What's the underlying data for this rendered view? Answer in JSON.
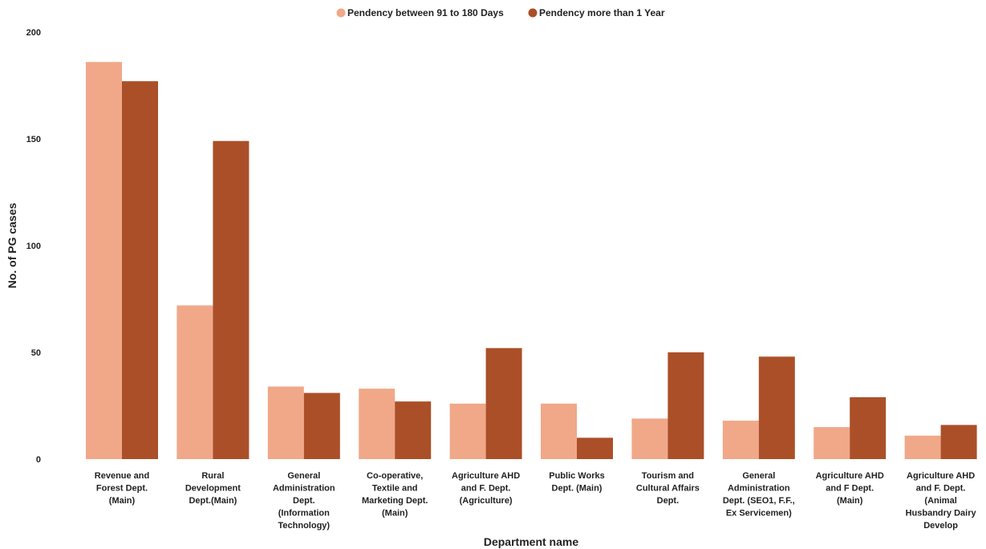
{
  "chart_data": {
    "type": "bar",
    "title": "",
    "xlabel": "Department name",
    "ylabel": "No. of PG cases",
    "ylim": [
      0,
      200
    ],
    "yticks": [
      0,
      50,
      100,
      150,
      200
    ],
    "grid": false,
    "legend_position": "top-center",
    "categories": [
      [
        "Revenue and",
        "Forest Dept.",
        "(Main)"
      ],
      [
        "Rural",
        "Development",
        "Dept.(Main)"
      ],
      [
        "General",
        "Administration",
        "Dept.",
        "(Information",
        "Technology)"
      ],
      [
        "Co-operative,",
        "Textile and",
        "Marketing Dept.",
        "(Main)"
      ],
      [
        "Agriculture AHD",
        "and F. Dept.",
        "(Agriculture)"
      ],
      [
        "Public Works",
        "Dept. (Main)"
      ],
      [
        "Tourism and",
        "Cultural Affairs",
        "Dept."
      ],
      [
        "General",
        "Administration",
        "Dept. (SEO1, F.F.,",
        "Ex Servicemen)"
      ],
      [
        "Agriculture AHD",
        "and F Dept.",
        "(Main)"
      ],
      [
        "Agriculture AHD",
        "and F. Dept.",
        "(Animal",
        "Husbandry Dairy",
        "Develop"
      ]
    ],
    "series": [
      {
        "name": "Pendency between 91 to 180 Days",
        "color": "#f0a889",
        "values": [
          186,
          72,
          34,
          33,
          26,
          26,
          19,
          18,
          15,
          11
        ]
      },
      {
        "name": "Pendency more than 1 Year",
        "color": "#ab4f28",
        "values": [
          177,
          149,
          31,
          27,
          52,
          10,
          50,
          48,
          29,
          16
        ]
      }
    ]
  }
}
